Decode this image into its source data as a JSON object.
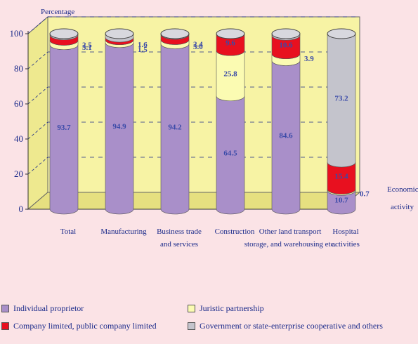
{
  "chart_data": {
    "type": "stacked-bar",
    "ylabel": "Percentage",
    "xlabel": [
      "Economic",
      "activity"
    ],
    "ylim": [
      0,
      100
    ],
    "yticks": [
      0,
      20,
      40,
      60,
      80,
      100
    ],
    "grid": "dashed",
    "categories": [
      [
        "Total"
      ],
      [
        "Manufacturing"
      ],
      [
        "Business trade",
        "and services"
      ],
      [
        "Construction"
      ],
      [
        "Other land transport",
        "storage, and warehousing etc."
      ],
      [
        "Hospital",
        "activities"
      ]
    ],
    "series": [
      {
        "name": "Individual proprietor",
        "color": "#a98fc9",
        "values": [
          93.7,
          94.9,
          94.2,
          64.5,
          84.6,
          10.7
        ]
      },
      {
        "name": "Juristic partnership",
        "color": "#fbfbb2",
        "values": [
          2.5,
          1.6,
          2.4,
          25.8,
          3.9,
          0.7
        ]
      },
      {
        "name": "Company limited, public company limited",
        "color": "#e8101f",
        "values": [
          3.1,
          1.5,
          3.0,
          9.6,
          10.6,
          15.4
        ]
      },
      {
        "name": "Government or state-enterprise cooperative and others",
        "color": "#c4c4cc",
        "values": [
          0.7,
          2.0,
          0.4,
          0.1,
          0.9,
          73.2
        ]
      }
    ],
    "legend_position": "bottom"
  }
}
